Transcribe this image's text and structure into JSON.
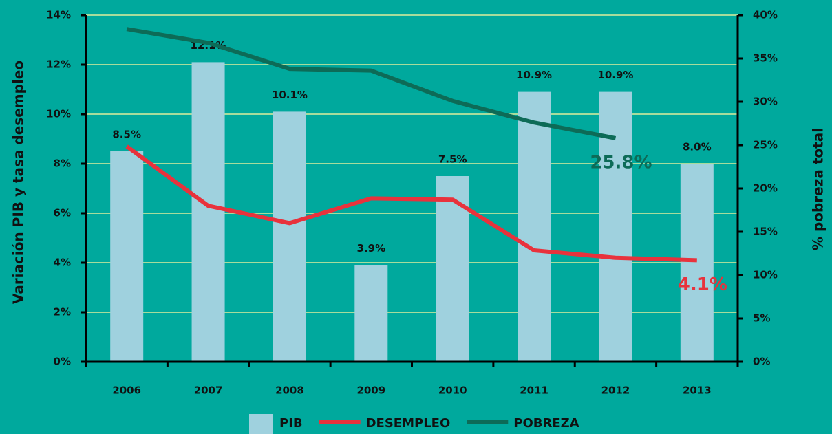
{
  "chart_data": {
    "type": "bar",
    "categories": [
      "2006",
      "2007",
      "2008",
      "2009",
      "2010",
      "2011",
      "2012",
      "2013"
    ],
    "ylabel": "Variación PIB y tasa desempleo",
    "y2label": "% pobreza total",
    "ylim": [
      0,
      14
    ],
    "yticks": [
      {
        "value": 0,
        "label": "0%"
      },
      {
        "value": 2,
        "label": "2%"
      },
      {
        "value": 4,
        "label": "4%"
      },
      {
        "value": 6,
        "label": "6%"
      },
      {
        "value": 8,
        "label": "8%"
      },
      {
        "value": 10,
        "label": "10%"
      },
      {
        "value": 12,
        "label": "12%"
      },
      {
        "value": 14,
        "label": "14%"
      }
    ],
    "y2lim": [
      0,
      40
    ],
    "y2ticks": [
      {
        "value": 0,
        "label": "0%"
      },
      {
        "value": 5,
        "label": "5%"
      },
      {
        "value": 10,
        "label": "10%"
      },
      {
        "value": 15,
        "label": "15%"
      },
      {
        "value": 20,
        "label": "20%"
      },
      {
        "value": 25,
        "label": "25%"
      },
      {
        "value": 30,
        "label": "30%"
      },
      {
        "value": 35,
        "label": "35%"
      },
      {
        "value": 40,
        "label": "40%"
      }
    ],
    "grid": true,
    "legend": "bottom",
    "series": [
      {
        "name": "PIB",
        "type": "bar",
        "color": "#9fd1de",
        "values": [
          8.5,
          12.1,
          10.1,
          3.9,
          7.5,
          10.9,
          10.9,
          8.0
        ],
        "value_labels": [
          "8.5%",
          "12.1%",
          "10.1%",
          "3.9%",
          "7.5%",
          "10.9%",
          "10.9%",
          "8.0%"
        ]
      },
      {
        "name": "DESEMPLEO",
        "type": "line",
        "color": "#e8323c",
        "values": [
          8.7,
          6.3,
          5.6,
          6.6,
          6.55,
          4.5,
          4.2,
          4.1
        ],
        "value_labels": [
          null,
          null,
          null,
          null,
          null,
          null,
          null,
          "4.1%"
        ]
      },
      {
        "name": "POBREZA",
        "type": "line",
        "axis": "y2",
        "color": "#0d6b57",
        "values": [
          38.4,
          36.8,
          33.8,
          33.6,
          30.1,
          27.6,
          25.8,
          null
        ],
        "value_labels": [
          null,
          null,
          null,
          null,
          null,
          null,
          "25.8%",
          null
        ]
      }
    ]
  }
}
